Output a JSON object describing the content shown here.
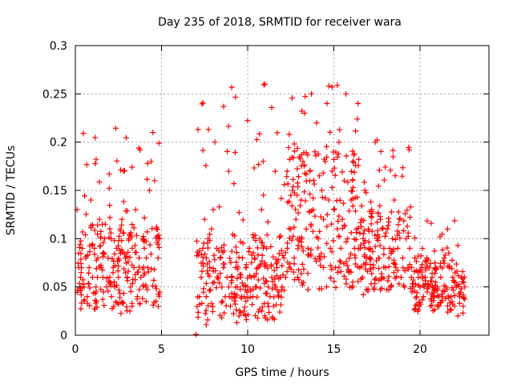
{
  "chart_data": {
    "type": "scatter",
    "title": "Day 235 of 2018, SRMTID for receiver wara",
    "xlabel": "GPS time / hours",
    "ylabel": "SRMTID / TECUs",
    "xlim": [
      0,
      24
    ],
    "ylim": [
      0,
      0.3
    ],
    "x_ticks": [
      0,
      5,
      10,
      15,
      20
    ],
    "x_tick_labels": [
      "0",
      "5",
      "10",
      "15",
      "20"
    ],
    "y_ticks": [
      0,
      0.05,
      0.1,
      0.15,
      0.2,
      0.25,
      0.3
    ],
    "y_tick_labels": [
      "0",
      "0.05",
      "0.1",
      "0.15",
      "0.2",
      "0.25",
      "0.3"
    ],
    "grid": true,
    "marker": "plus",
    "color": "#ff0000",
    "envelope": [
      {
        "x": [
          0.0,
          4.9
        ],
        "low": 0.02,
        "mid": 0.07,
        "high": 0.22
      },
      {
        "x": [
          7.0,
          12.0
        ],
        "low": 0.01,
        "mid": 0.06,
        "high": 0.26
      },
      {
        "x": [
          12.0,
          16.5
        ],
        "low": 0.04,
        "mid": 0.12,
        "high": 0.26
      },
      {
        "x": [
          16.5,
          19.5
        ],
        "low": 0.04,
        "mid": 0.09,
        "high": 0.22
      },
      {
        "x": [
          19.5,
          22.6
        ],
        "low": 0.02,
        "mid": 0.05,
        "high": 0.12
      }
    ],
    "series": [
      {
        "name": "SRMTID",
        "points": [
          [
            0.1,
            0.13
          ],
          [
            0.2,
            0.07
          ],
          [
            0.3,
            0.06
          ],
          [
            0.4,
            0.09
          ],
          [
            0.5,
            0.05
          ],
          [
            0.6,
            0.08
          ],
          [
            0.7,
            0.04
          ],
          [
            0.8,
            0.07
          ],
          [
            0.9,
            0.14
          ],
          [
            1.0,
            0.06
          ],
          [
            1.1,
            0.09
          ],
          [
            1.2,
            0.05
          ],
          [
            1.3,
            0.08
          ],
          [
            1.4,
            0.12
          ],
          [
            1.5,
            0.07
          ],
          [
            1.6,
            0.06
          ],
          [
            1.7,
            0.1
          ],
          [
            1.8,
            0.05
          ],
          [
            1.9,
            0.08
          ],
          [
            2.0,
            0.06
          ],
          [
            2.1,
            0.04
          ],
          [
            2.2,
            0.07
          ],
          [
            2.3,
            0.05
          ],
          [
            2.4,
            0.09
          ],
          [
            2.5,
            0.06
          ],
          [
            2.6,
            0.11
          ],
          [
            2.7,
            0.12
          ],
          [
            2.8,
            0.17
          ],
          [
            2.9,
            0.08
          ],
          [
            3.0,
            0.06
          ],
          [
            3.1,
            0.1
          ],
          [
            3.2,
            0.05
          ],
          [
            3.3,
            0.09
          ],
          [
            3.4,
            0.07
          ],
          [
            3.5,
            0.13
          ],
          [
            3.6,
            0.04
          ],
          [
            3.7,
            0.08
          ],
          [
            3.8,
            0.06
          ],
          [
            3.9,
            0.1
          ],
          [
            4.0,
            0.09
          ],
          [
            4.1,
            0.05
          ],
          [
            4.2,
            0.07
          ],
          [
            4.3,
            0.15
          ],
          [
            4.4,
            0.18
          ],
          [
            4.5,
            0.21
          ],
          [
            4.6,
            0.16
          ],
          [
            4.7,
            0.11
          ],
          [
            4.8,
            0.08
          ],
          [
            4.9,
            0.1
          ],
          [
            7.0,
            0.0
          ],
          [
            7.2,
            0.04
          ],
          [
            7.3,
            0.06
          ],
          [
            7.4,
            0.09
          ],
          [
            7.5,
            0.12
          ],
          [
            7.6,
            0.08
          ],
          [
            7.7,
            0.1
          ],
          [
            7.8,
            0.07
          ],
          [
            7.9,
            0.11
          ],
          [
            8.0,
            0.13
          ],
          [
            8.1,
            0.2
          ],
          [
            8.2,
            0.09
          ],
          [
            8.3,
            0.06
          ],
          [
            8.4,
            0.08
          ],
          [
            8.5,
            0.05
          ],
          [
            8.6,
            0.07
          ],
          [
            8.7,
            0.04
          ],
          [
            8.8,
            0.06
          ],
          [
            8.9,
            0.05
          ],
          [
            9.0,
            0.03
          ],
          [
            9.1,
            0.06
          ],
          [
            9.2,
            0.04
          ],
          [
            9.3,
            0.07
          ],
          [
            9.4,
            0.05
          ],
          [
            9.5,
            0.02
          ],
          [
            9.6,
            0.06
          ],
          [
            9.7,
            0.08
          ],
          [
            9.8,
            0.04
          ],
          [
            9.9,
            0.07
          ],
          [
            10.0,
            0.05
          ],
          [
            10.1,
            0.09
          ],
          [
            10.2,
            0.06
          ],
          [
            10.3,
            0.04
          ],
          [
            10.4,
            0.08
          ],
          [
            10.5,
            0.05
          ],
          [
            10.6,
            0.07
          ],
          [
            10.7,
            0.1
          ],
          [
            10.8,
            0.13
          ],
          [
            10.9,
            0.18
          ],
          [
            11.0,
            0.26
          ],
          [
            11.1,
            0.09
          ],
          [
            11.2,
            0.05
          ],
          [
            11.3,
            0.04
          ],
          [
            11.4,
            0.06
          ],
          [
            11.5,
            0.03
          ],
          [
            11.6,
            0.05
          ],
          [
            11.7,
            0.07
          ],
          [
            11.8,
            0.04
          ],
          [
            11.9,
            0.06
          ],
          [
            12.0,
            0.05
          ],
          [
            12.1,
            0.08
          ],
          [
            12.2,
            0.06
          ],
          [
            12.3,
            0.09
          ],
          [
            12.4,
            0.07
          ],
          [
            12.5,
            0.11
          ],
          [
            12.6,
            0.15
          ],
          [
            12.7,
            0.08
          ],
          [
            12.8,
            0.12
          ],
          [
            12.9,
            0.06
          ],
          [
            13.0,
            0.1
          ],
          [
            13.1,
            0.14
          ],
          [
            13.2,
            0.18
          ],
          [
            13.3,
            0.23
          ],
          [
            13.4,
            0.11
          ],
          [
            13.5,
            0.09
          ],
          [
            13.6,
            0.16
          ],
          [
            13.7,
            0.25
          ],
          [
            13.8,
            0.13
          ],
          [
            13.9,
            0.19
          ],
          [
            14.0,
            0.22
          ],
          [
            14.1,
            0.1
          ],
          [
            14.2,
            0.08
          ],
          [
            14.3,
            0.15
          ],
          [
            14.4,
            0.12
          ],
          [
            14.5,
            0.18
          ],
          [
            14.6,
            0.24
          ],
          [
            14.7,
            0.14
          ],
          [
            14.8,
            0.09
          ],
          [
            14.9,
            0.17
          ],
          [
            15.0,
            0.13
          ],
          [
            15.1,
            0.07
          ],
          [
            15.2,
            0.11
          ],
          [
            15.3,
            0.2
          ],
          [
            15.4,
            0.09
          ],
          [
            15.5,
            0.12
          ],
          [
            15.6,
            0.16
          ],
          [
            15.7,
            0.25
          ],
          [
            15.8,
            0.1
          ],
          [
            15.9,
            0.08
          ],
          [
            16.0,
            0.14
          ],
          [
            16.1,
            0.18
          ],
          [
            16.2,
            0.09
          ],
          [
            16.3,
            0.11
          ],
          [
            16.4,
            0.24
          ],
          [
            16.5,
            0.07
          ],
          [
            16.6,
            0.12
          ],
          [
            16.7,
            0.1
          ],
          [
            16.8,
            0.15
          ],
          [
            16.9,
            0.08
          ],
          [
            17.0,
            0.11
          ],
          [
            17.1,
            0.09
          ],
          [
            17.2,
            0.13
          ],
          [
            17.3,
            0.07
          ],
          [
            17.4,
            0.2
          ],
          [
            17.5,
            0.1
          ],
          [
            17.6,
            0.08
          ],
          [
            17.7,
            0.12
          ],
          [
            17.8,
            0.06
          ],
          [
            17.9,
            0.09
          ],
          [
            18.0,
            0.07
          ],
          [
            18.1,
            0.11
          ],
          [
            18.2,
            0.08
          ],
          [
            18.3,
            0.05
          ],
          [
            18.4,
            0.1
          ],
          [
            18.5,
            0.14
          ],
          [
            18.6,
            0.07
          ],
          [
            18.7,
            0.09
          ],
          [
            18.8,
            0.12
          ],
          [
            18.9,
            0.06
          ],
          [
            19.0,
            0.08
          ],
          [
            19.1,
            0.05
          ],
          [
            19.2,
            0.1
          ],
          [
            19.3,
            0.07
          ],
          [
            19.4,
            0.09
          ],
          [
            19.5,
            0.06
          ],
          [
            19.6,
            0.05
          ],
          [
            19.7,
            0.08
          ],
          [
            19.8,
            0.04
          ],
          [
            19.9,
            0.06
          ],
          [
            20.0,
            0.05
          ],
          [
            20.1,
            0.07
          ],
          [
            20.2,
            0.04
          ],
          [
            20.3,
            0.06
          ],
          [
            20.4,
            0.08
          ],
          [
            20.5,
            0.05
          ],
          [
            20.6,
            0.03
          ],
          [
            20.7,
            0.06
          ],
          [
            20.8,
            0.04
          ],
          [
            20.9,
            0.07
          ],
          [
            21.0,
            0.05
          ],
          [
            21.1,
            0.03
          ],
          [
            21.2,
            0.06
          ],
          [
            21.3,
            0.04
          ],
          [
            21.4,
            0.08
          ],
          [
            21.5,
            0.05
          ],
          [
            21.6,
            0.11
          ],
          [
            21.7,
            0.07
          ],
          [
            21.8,
            0.04
          ],
          [
            21.9,
            0.06
          ],
          [
            22.0,
            0.03
          ],
          [
            22.1,
            0.05
          ],
          [
            22.2,
            0.02
          ],
          [
            22.3,
            0.04
          ],
          [
            22.4,
            0.06
          ],
          [
            22.5,
            0.03
          ],
          [
            22.6,
            0.05
          ]
        ]
      }
    ]
  }
}
